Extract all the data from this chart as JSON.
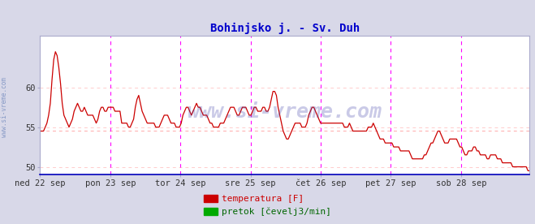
{
  "title": "Bohinjsko j. - Sv. Duh",
  "title_color": "#0000cc",
  "title_fontsize": 10,
  "background_color": "#d8d8e8",
  "plot_bg_color": "#ffffff",
  "line_color": "#cc0000",
  "legend_temp_color": "#cc0000",
  "legend_flow_color": "#00aa00",
  "legend_temp_label": "temperatura [F]",
  "legend_flow_label": "pretok [čevelj3/min]",
  "watermark": "www.si-vreme.com",
  "watermark_color": "#4444aa",
  "watermark_alpha": 0.28,
  "watermark_fontsize": 18,
  "yticks": [
    50,
    55,
    60
  ],
  "ylim": [
    49.0,
    66.5
  ],
  "xlim": [
    0,
    335
  ],
  "grid_h_color": "#ffcccc",
  "vline_color": "#ff00ff",
  "hline_color": "#ffaaaa",
  "hline_value": 54.5,
  "xlabel_ticks": [
    0,
    48,
    96,
    144,
    192,
    240,
    288
  ],
  "xlabel_labels": [
    "ned 22 sep",
    "pon 23 sep",
    "tor 24 sep",
    "sre 25 sep",
    "čet 26 sep",
    "pet 27 sep",
    "sob 28 sep"
  ],
  "figsize": [
    6.59,
    2.76
  ],
  "dpi": 100,
  "temp_data": [
    54.5,
    54.5,
    54.5,
    55.0,
    55.5,
    56.5,
    58.0,
    61.0,
    63.5,
    64.5,
    64.0,
    62.5,
    60.5,
    58.0,
    56.5,
    56.0,
    55.5,
    55.0,
    55.5,
    56.0,
    57.0,
    57.5,
    58.0,
    57.5,
    57.0,
    57.0,
    57.5,
    57.0,
    56.5,
    56.5,
    56.5,
    56.5,
    56.0,
    55.5,
    56.0,
    57.0,
    57.5,
    57.5,
    57.0,
    57.0,
    57.5,
    57.5,
    57.5,
    57.5,
    57.0,
    57.0,
    57.0,
    57.0,
    55.5,
    55.5,
    55.5,
    55.5,
    55.0,
    55.0,
    55.5,
    56.0,
    57.5,
    58.5,
    59.0,
    58.0,
    57.0,
    56.5,
    56.0,
    55.5,
    55.5,
    55.5,
    55.5,
    55.5,
    55.0,
    55.0,
    55.0,
    55.5,
    56.0,
    56.5,
    56.5,
    56.5,
    56.0,
    55.5,
    55.5,
    55.5,
    55.0,
    55.0,
    55.0,
    55.5,
    56.5,
    57.0,
    57.5,
    57.5,
    57.0,
    56.5,
    57.0,
    57.5,
    58.0,
    57.5,
    57.5,
    57.0,
    56.5,
    56.5,
    56.5,
    56.0,
    55.5,
    55.5,
    55.0,
    55.0,
    55.0,
    55.0,
    55.5,
    55.5,
    55.5,
    56.0,
    56.5,
    57.0,
    57.5,
    57.5,
    57.5,
    57.0,
    56.5,
    56.5,
    57.0,
    57.5,
    57.5,
    57.5,
    57.0,
    56.5,
    56.5,
    57.0,
    57.5,
    57.5,
    57.0,
    57.0,
    57.0,
    57.5,
    57.5,
    57.0,
    57.0,
    57.5,
    58.5,
    59.5,
    59.5,
    59.0,
    57.5,
    56.5,
    55.5,
    54.5,
    54.0,
    53.5,
    53.5,
    54.0,
    54.5,
    55.0,
    55.5,
    55.5,
    55.5,
    55.5,
    55.0,
    55.0,
    55.0,
    55.5,
    56.5,
    57.0,
    57.5,
    57.5,
    57.0,
    56.5,
    56.0,
    55.5,
    55.5,
    55.5,
    55.5,
    55.5,
    55.5,
    55.5,
    55.5,
    55.5,
    55.5,
    55.5,
    55.5,
    55.5,
    55.5,
    55.0,
    55.0,
    55.0,
    55.5,
    55.0,
    54.5,
    54.5,
    54.5,
    54.5,
    54.5,
    54.5,
    54.5,
    54.5,
    54.5,
    55.0,
    55.0,
    55.0,
    55.5,
    55.0,
    54.5,
    54.0,
    53.5,
    53.5,
    53.5,
    53.0,
    53.0,
    53.0,
    53.0,
    53.0,
    52.5,
    52.5,
    52.5,
    52.5,
    52.0,
    52.0,
    52.0,
    52.0,
    52.0,
    52.0,
    51.5,
    51.0,
    51.0,
    51.0,
    51.0,
    51.0,
    51.0,
    51.0,
    51.5,
    51.5,
    52.0,
    52.5,
    53.0,
    53.0,
    53.5,
    54.0,
    54.5,
    54.5,
    54.0,
    53.5,
    53.0,
    53.0,
    53.0,
    53.5,
    53.5,
    53.5,
    53.5,
    53.5,
    53.0,
    52.5,
    52.5,
    52.0,
    51.5,
    51.5,
    52.0,
    52.0,
    52.0,
    52.5,
    52.5,
    52.0,
    52.0,
    51.5,
    51.5,
    51.5,
    51.5,
    51.0,
    51.0,
    51.5,
    51.5,
    51.5,
    51.5,
    51.0,
    51.0,
    51.0,
    50.5,
    50.5,
    50.5,
    50.5,
    50.5,
    50.5,
    50.0,
    50.0,
    50.0,
    50.0,
    50.0,
    50.0,
    50.0,
    50.0,
    50.0,
    49.5,
    49.5
  ]
}
